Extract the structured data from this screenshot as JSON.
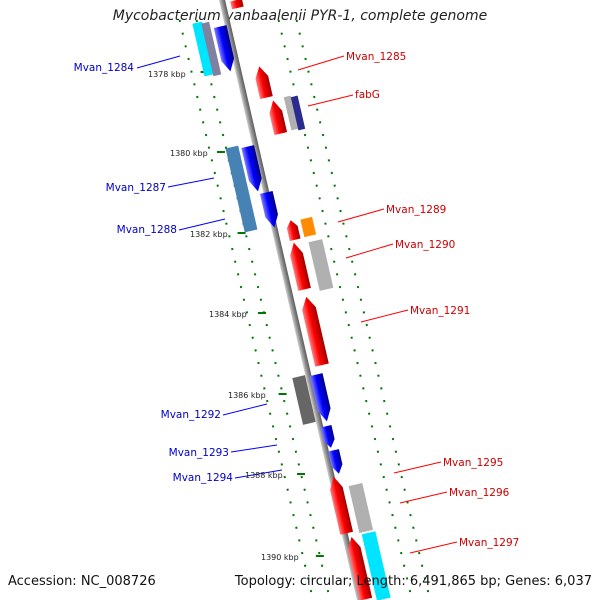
{
  "title": "Mycobacterium vanbaalenii PYR-1, complete genome",
  "accession": "Accession: NC_008726",
  "summary": "Topology: circular; Length: 6,491,865 bp; Genes: 6,037",
  "ticks": [
    "1378 kbp",
    "1380 kbp",
    "1382 kbp",
    "1384 kbp",
    "1386 kbp",
    "1388 kbp",
    "1390 kbp"
  ],
  "genes_left": [
    "Mvan_1284",
    "Mvan_1287",
    "Mvan_1288",
    "Mvan_1292",
    "Mvan_1293",
    "Mvan_1294"
  ],
  "genes_right": [
    "Mvan_1285",
    "fabG",
    "Mvan_1289",
    "Mvan_1290",
    "Mvan_1291",
    "Mvan_1295",
    "Mvan_1296",
    "Mvan_1297"
  ],
  "colors": {
    "forward": "#0000ff",
    "reverse": "#ff0000",
    "label_forward": "#0000cc",
    "label_reverse": "#cc0000",
    "backbone": "#888888",
    "tick": "#007700",
    "cyan": "#00e5ff",
    "orange": "#ff8c00",
    "steel": "#4682b4",
    "gray": "#b0b0b0",
    "dark_gray": "#666666"
  }
}
